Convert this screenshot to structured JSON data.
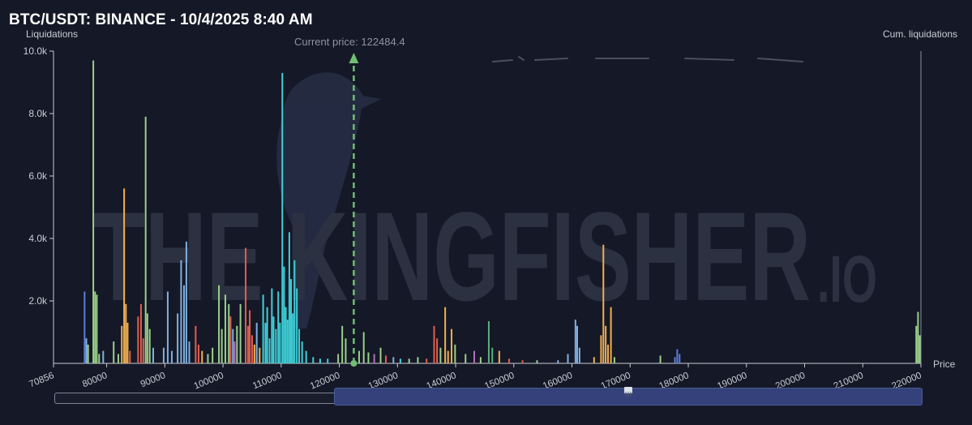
{
  "header": {
    "title": "BTC/USDT: BINANCE - 10/4/2025 8:40 AM",
    "left_axis_title": "Liquidations",
    "right_axis_title": "Cum. liquidations",
    "x_axis_title": "Price",
    "current_price_label": "Current price: 122484.4"
  },
  "watermark": {
    "main": "THE KINGFISHER",
    "suffix": ".IO"
  },
  "colors": {
    "background": "#151826",
    "axis": "#c7cad3",
    "current_price_line": "#6fbf73",
    "watermark": "#2f3444"
  },
  "chart_data": {
    "type": "bar",
    "title": "BTC/USDT: BINANCE - 10/4/2025 8:40 AM",
    "xlabel": "Price",
    "ylabel": "Liquidations",
    "y2label": "Cum. liquidations",
    "xlim": [
      70856,
      220000
    ],
    "ylim": [
      0,
      10000
    ],
    "x_ticks": [
      "70856",
      "80000",
      "90000",
      "100000",
      "110000",
      "120000",
      "130000",
      "140000",
      "150000",
      "160000",
      "170000",
      "180000",
      "190000",
      "200000",
      "210000",
      "220000"
    ],
    "y_ticks": [
      "10.0k",
      "8.0k",
      "6.0k",
      "4.0k",
      "2.0k"
    ],
    "current_price": 122484.4,
    "grid": false,
    "bars": [
      {
        "x": 76200,
        "y": 2300,
        "color": "#5b7fd6"
      },
      {
        "x": 76500,
        "y": 800,
        "color": "#7fb0e0"
      },
      {
        "x": 76800,
        "y": 600,
        "color": "#9ad08a"
      },
      {
        "x": 77700,
        "y": 9700,
        "color": "#9ad08a"
      },
      {
        "x": 78000,
        "y": 2300,
        "color": "#9ad08a"
      },
      {
        "x": 78300,
        "y": 2200,
        "color": "#9ad08a"
      },
      {
        "x": 78700,
        "y": 300,
        "color": "#9ad08a"
      },
      {
        "x": 79400,
        "y": 400,
        "color": "#7fb0e0"
      },
      {
        "x": 81200,
        "y": 700,
        "color": "#9ad08a"
      },
      {
        "x": 82000,
        "y": 300,
        "color": "#9ad08a"
      },
      {
        "x": 82600,
        "y": 1200,
        "color": "#f0b050"
      },
      {
        "x": 83000,
        "y": 5600,
        "color": "#f0b050"
      },
      {
        "x": 83300,
        "y": 1900,
        "color": "#f0b050"
      },
      {
        "x": 83600,
        "y": 1300,
        "color": "#f0b050"
      },
      {
        "x": 84000,
        "y": 400,
        "color": "#e06050"
      },
      {
        "x": 85400,
        "y": 1500,
        "color": "#e06050"
      },
      {
        "x": 85900,
        "y": 1900,
        "color": "#e06050"
      },
      {
        "x": 86300,
        "y": 800,
        "color": "#e06050"
      },
      {
        "x": 86700,
        "y": 7900,
        "color": "#9ad08a"
      },
      {
        "x": 87000,
        "y": 1600,
        "color": "#9ad08a"
      },
      {
        "x": 87400,
        "y": 1100,
        "color": "#9ad08a"
      },
      {
        "x": 88000,
        "y": 500,
        "color": "#7fb0e0"
      },
      {
        "x": 89800,
        "y": 500,
        "color": "#7fb0e0"
      },
      {
        "x": 90500,
        "y": 2300,
        "color": "#7fb0e0"
      },
      {
        "x": 91200,
        "y": 400,
        "color": "#7fb0e0"
      },
      {
        "x": 92200,
        "y": 1600,
        "color": "#7fb0e0"
      },
      {
        "x": 92800,
        "y": 3300,
        "color": "#7fb0e0"
      },
      {
        "x": 93300,
        "y": 2500,
        "color": "#7fb0e0"
      },
      {
        "x": 93700,
        "y": 3900,
        "color": "#7fb0e0"
      },
      {
        "x": 94200,
        "y": 700,
        "color": "#7fb0e0"
      },
      {
        "x": 95300,
        "y": 1200,
        "color": "#e06050"
      },
      {
        "x": 95800,
        "y": 600,
        "color": "#e06050"
      },
      {
        "x": 96400,
        "y": 400,
        "color": "#f0b050"
      },
      {
        "x": 97400,
        "y": 300,
        "color": "#9ad08a"
      },
      {
        "x": 98200,
        "y": 500,
        "color": "#9ad08a"
      },
      {
        "x": 99300,
        "y": 2500,
        "color": "#9ad08a"
      },
      {
        "x": 99800,
        "y": 1100,
        "color": "#9ad08a"
      },
      {
        "x": 100400,
        "y": 2200,
        "color": "#9ad08a"
      },
      {
        "x": 101000,
        "y": 1900,
        "color": "#9ad08a"
      },
      {
        "x": 101300,
        "y": 1500,
        "color": "#e06050"
      },
      {
        "x": 101700,
        "y": 1100,
        "color": "#7fb0e0"
      },
      {
        "x": 102000,
        "y": 700,
        "color": "#b070c0"
      },
      {
        "x": 102400,
        "y": 1200,
        "color": "#9ad08a"
      },
      {
        "x": 103000,
        "y": 1900,
        "color": "#9ad08a"
      },
      {
        "x": 103900,
        "y": 3700,
        "color": "#e06050"
      },
      {
        "x": 104300,
        "y": 1200,
        "color": "#e06050"
      },
      {
        "x": 104600,
        "y": 1700,
        "color": "#e06050"
      },
      {
        "x": 105000,
        "y": 900,
        "color": "#e06050"
      },
      {
        "x": 105400,
        "y": 600,
        "color": "#f0b050"
      },
      {
        "x": 105800,
        "y": 1300,
        "color": "#7fb0e0"
      },
      {
        "x": 106300,
        "y": 500,
        "color": "#f0b050"
      },
      {
        "x": 106900,
        "y": 2200,
        "color": "#3fd0d8"
      },
      {
        "x": 107300,
        "y": 1300,
        "color": "#3fd0d8"
      },
      {
        "x": 107600,
        "y": 1800,
        "color": "#3fd0d8"
      },
      {
        "x": 108000,
        "y": 800,
        "color": "#3fd0d8"
      },
      {
        "x": 108400,
        "y": 2400,
        "color": "#3fd0d8"
      },
      {
        "x": 108700,
        "y": 1500,
        "color": "#3fd0d8"
      },
      {
        "x": 109100,
        "y": 1100,
        "color": "#3fd0d8"
      },
      {
        "x": 109500,
        "y": 2300,
        "color": "#3fd0d8"
      },
      {
        "x": 109800,
        "y": 1300,
        "color": "#3fd0d8"
      },
      {
        "x": 110200,
        "y": 9300,
        "color": "#3fd0d8"
      },
      {
        "x": 110500,
        "y": 3100,
        "color": "#3fd0d8"
      },
      {
        "x": 110800,
        "y": 1800,
        "color": "#3fd0d8"
      },
      {
        "x": 111100,
        "y": 1400,
        "color": "#3fd0d8"
      },
      {
        "x": 111400,
        "y": 4200,
        "color": "#3fd0d8"
      },
      {
        "x": 111700,
        "y": 2700,
        "color": "#3fd0d8"
      },
      {
        "x": 112000,
        "y": 1600,
        "color": "#3fd0d8"
      },
      {
        "x": 112300,
        "y": 3300,
        "color": "#3fd0d8"
      },
      {
        "x": 112700,
        "y": 2400,
        "color": "#3fd0d8"
      },
      {
        "x": 113100,
        "y": 1100,
        "color": "#3fd0d8"
      },
      {
        "x": 113600,
        "y": 700,
        "color": "#3fd0d8"
      },
      {
        "x": 114300,
        "y": 400,
        "color": "#3fd0d8"
      },
      {
        "x": 115500,
        "y": 200,
        "color": "#3fd0d8"
      },
      {
        "x": 116700,
        "y": 150,
        "color": "#3fd0d8"
      },
      {
        "x": 118000,
        "y": 150,
        "color": "#3fd0d8"
      },
      {
        "x": 119800,
        "y": 300,
        "color": "#9ad08a"
      },
      {
        "x": 120500,
        "y": 1200,
        "color": "#9ad08a"
      },
      {
        "x": 121100,
        "y": 800,
        "color": "#9ad08a"
      },
      {
        "x": 123400,
        "y": 400,
        "color": "#9ad08a"
      },
      {
        "x": 124200,
        "y": 1000,
        "color": "#9ad08a"
      },
      {
        "x": 125000,
        "y": 350,
        "color": "#9ad08a"
      },
      {
        "x": 126000,
        "y": 300,
        "color": "#b070c0"
      },
      {
        "x": 127100,
        "y": 500,
        "color": "#9ad08a"
      },
      {
        "x": 128000,
        "y": 250,
        "color": "#e06050"
      },
      {
        "x": 129300,
        "y": 200,
        "color": "#7fb0e0"
      },
      {
        "x": 130500,
        "y": 150,
        "color": "#3fd0d8"
      },
      {
        "x": 132000,
        "y": 150,
        "color": "#9ad08a"
      },
      {
        "x": 133500,
        "y": 200,
        "color": "#9ad08a"
      },
      {
        "x": 135000,
        "y": 150,
        "color": "#e06050"
      },
      {
        "x": 136300,
        "y": 1200,
        "color": "#e06050"
      },
      {
        "x": 136800,
        "y": 800,
        "color": "#e06050"
      },
      {
        "x": 137400,
        "y": 500,
        "color": "#9ad08a"
      },
      {
        "x": 138200,
        "y": 1800,
        "color": "#f0b050"
      },
      {
        "x": 138700,
        "y": 400,
        "color": "#f0b050"
      },
      {
        "x": 139300,
        "y": 1100,
        "color": "#f0b050"
      },
      {
        "x": 139900,
        "y": 600,
        "color": "#9ad08a"
      },
      {
        "x": 141700,
        "y": 300,
        "color": "#9ad08a"
      },
      {
        "x": 143200,
        "y": 400,
        "color": "#b070c0"
      },
      {
        "x": 144300,
        "y": 200,
        "color": "#9ad08a"
      },
      {
        "x": 145700,
        "y": 1350,
        "color": "#5ab080"
      },
      {
        "x": 146300,
        "y": 500,
        "color": "#5ab080"
      },
      {
        "x": 147500,
        "y": 400,
        "color": "#f0b050"
      },
      {
        "x": 149200,
        "y": 150,
        "color": "#e06050"
      },
      {
        "x": 151500,
        "y": 100,
        "color": "#e06050"
      },
      {
        "x": 154000,
        "y": 100,
        "color": "#9ad08a"
      },
      {
        "x": 157600,
        "y": 100,
        "color": "#7fb0e0"
      },
      {
        "x": 159300,
        "y": 300,
        "color": "#7fb0e0"
      },
      {
        "x": 160600,
        "y": 1400,
        "color": "#7fb0e0"
      },
      {
        "x": 160900,
        "y": 1200,
        "color": "#7fb0e0"
      },
      {
        "x": 161300,
        "y": 500,
        "color": "#7fb0e0"
      },
      {
        "x": 163800,
        "y": 200,
        "color": "#f0b050"
      },
      {
        "x": 165000,
        "y": 900,
        "color": "#f0b050"
      },
      {
        "x": 165400,
        "y": 3800,
        "color": "#f0b050"
      },
      {
        "x": 165800,
        "y": 1200,
        "color": "#f0b050"
      },
      {
        "x": 166200,
        "y": 600,
        "color": "#f0b050"
      },
      {
        "x": 166700,
        "y": 1800,
        "color": "#f0b050"
      },
      {
        "x": 167300,
        "y": 200,
        "color": "#9ad08a"
      },
      {
        "x": 175200,
        "y": 250,
        "color": "#9ad08a"
      },
      {
        "x": 177700,
        "y": 200,
        "color": "#5b7fd6"
      },
      {
        "x": 178100,
        "y": 450,
        "color": "#5b7fd6"
      },
      {
        "x": 178500,
        "y": 300,
        "color": "#5b7fd6"
      },
      {
        "x": 219200,
        "y": 1200,
        "color": "#9ad08a"
      },
      {
        "x": 219500,
        "y": 1650,
        "color": "#9ad08a"
      },
      {
        "x": 219800,
        "y": 900,
        "color": "#9ad08a"
      }
    ]
  }
}
